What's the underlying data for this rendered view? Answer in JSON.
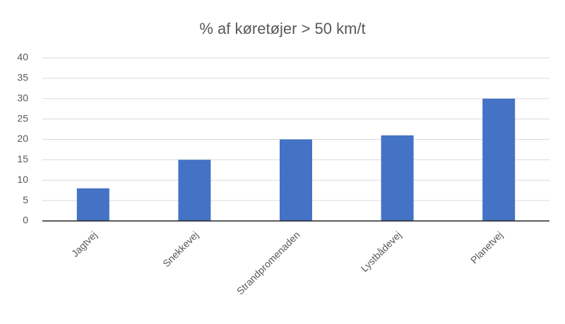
{
  "chart_data": {
    "type": "bar",
    "title": "% af køretøjer > 50 km/t",
    "categories": [
      "Jagtvej",
      "Snekkevej",
      "Strandpromenaden",
      "Lystbådevej",
      "Planetvej"
    ],
    "values": [
      8,
      15,
      20,
      21,
      30
    ],
    "color": "#4472c4",
    "ylim": [
      0,
      40
    ],
    "yticks": [
      0,
      5,
      10,
      15,
      20,
      25,
      30,
      35,
      40
    ],
    "grid": true
  }
}
